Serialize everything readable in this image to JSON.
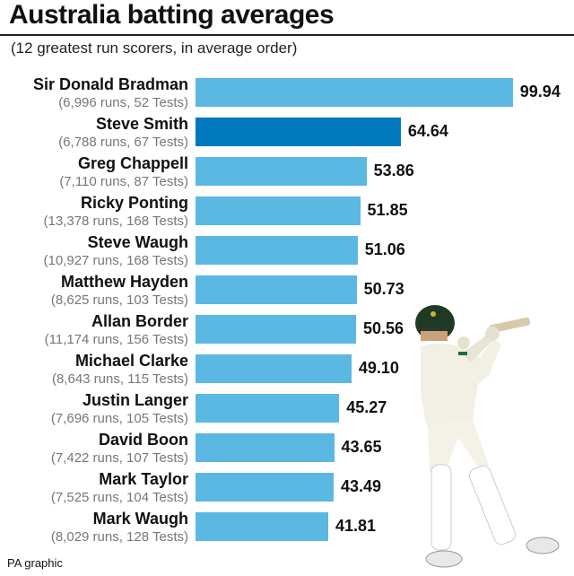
{
  "header": {
    "title": "Australia batting averages",
    "subtitle": "(12 greatest run scorers, in average order)"
  },
  "footer": {
    "credit": "PA graphic"
  },
  "colors": {
    "bar": "#5bb8e3",
    "highlight": "#0079bf"
  },
  "chart_data": {
    "type": "bar",
    "orientation": "horizontal",
    "title": "Australia batting averages",
    "subtitle": "(12 greatest run scorers, in average order)",
    "series": [
      {
        "values": [
          99.94,
          64.64,
          53.86,
          51.85,
          51.06,
          50.73,
          50.56,
          49.1,
          45.27,
          43.65,
          43.49,
          41.81
        ],
        "labels": [
          "99.94",
          "64.64",
          "53.86",
          "51.85",
          "51.06",
          "50.73",
          "50.56",
          "49.10",
          "45.27",
          "43.65",
          "43.49",
          "41.81"
        ]
      }
    ],
    "categories": [
      "Sir Donald Bradman",
      "Steve Smith",
      "Greg Chappell",
      "Ricky Ponting",
      "Steve Waugh",
      "Matthew Hayden",
      "Allan Border",
      "Michael Clarke",
      "Justin Langer",
      "David Boon",
      "Mark Taylor",
      "Mark Waugh"
    ],
    "details": [
      "(6,996 runs, 52 Tests)",
      "(6,788 runs, 67 Tests)",
      "(7,110 runs, 87 Tests)",
      "(13,378 runs, 168 Tests)",
      "(10,927 runs, 168 Tests)",
      "(8,625 runs, 103 Tests)",
      "(11,174 runs, 156 Tests)",
      "(8,643 runs, 115 Tests)",
      "(7,696 runs, 105 Tests)",
      "(7,422 runs, 107 Tests)",
      "(7,525 runs, 104 Tests)",
      "(8,029 runs, 128 Tests)"
    ],
    "highlight_index": 1,
    "xlim": [
      0,
      100
    ],
    "grid": false,
    "legend": "none"
  }
}
